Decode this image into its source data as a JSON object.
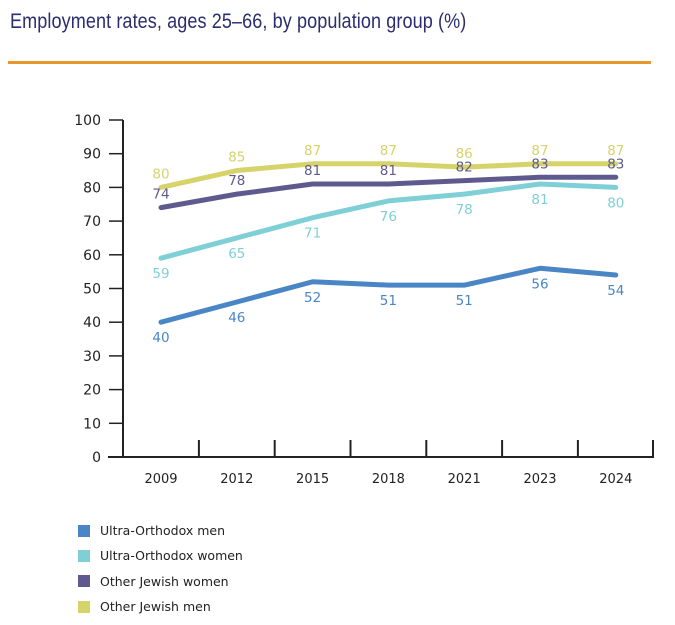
{
  "chart_data": {
    "type": "line",
    "title": "Employment rates, ages 25–66, by population group (%)",
    "xlabel": "",
    "ylabel": "",
    "ylim": [
      0,
      100
    ],
    "yticks": [
      0,
      10,
      20,
      30,
      40,
      50,
      60,
      70,
      80,
      90,
      100
    ],
    "categories": [
      "2009",
      "2012",
      "2015",
      "2018",
      "2021",
      "2023",
      "2024"
    ],
    "grid": false,
    "legend_position": "bottom-left",
    "series": [
      {
        "name": "Ultra-Orthodox men",
        "color": "#4a86c6",
        "values": [
          40,
          46,
          52,
          51,
          51,
          56,
          54
        ],
        "label_pos": "below"
      },
      {
        "name": "Ultra-Orthodox women",
        "color": "#7fd0d6",
        "values": [
          59,
          65,
          71,
          76,
          78,
          81,
          80
        ],
        "label_pos": "below"
      },
      {
        "name": "Other Jewish women",
        "color": "#5f5a8e",
        "values": [
          74,
          78,
          81,
          81,
          82,
          83,
          83
        ],
        "label_pos": "above"
      },
      {
        "name": "Other Jewish men",
        "color": "#d6d36a",
        "values": [
          80,
          85,
          87,
          87,
          86,
          87,
          87
        ],
        "label_pos": "above"
      }
    ]
  },
  "accent_rule_color": "#e8982a"
}
